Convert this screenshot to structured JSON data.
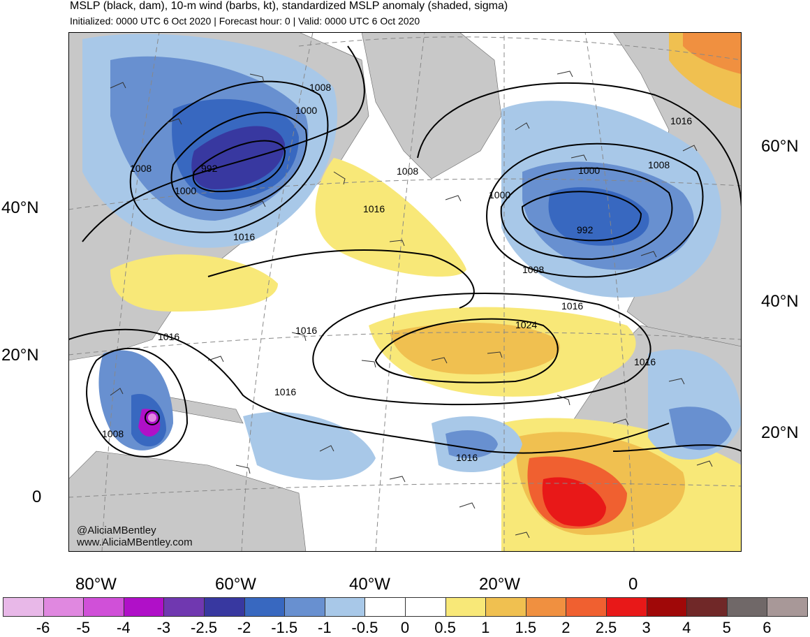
{
  "header": {
    "title": "MSLP (black, dam), 10-m wind (barbs, kt), standardized MSLP anomaly (shaded, sigma)",
    "subtitle": "Initialized: 0000 UTC 6 Oct 2020 | Forecast hour: 0 | Valid: 0000 UTC 6 Oct 2020"
  },
  "credits": {
    "handle": "@AliciaMBentley",
    "site": "www.AliciaMBentley.com"
  },
  "lat_labels_left": [
    "40°N",
    "20°N",
    "0"
  ],
  "lat_labels_right": [
    "60°N",
    "40°N",
    "20°N"
  ],
  "lon_labels": [
    "80°W",
    "60°W",
    "40°W",
    "20°W",
    "0"
  ],
  "contour_labels": [
    "1008",
    "1000",
    "992",
    "1000",
    "1008",
    "1016",
    "1016",
    "1016",
    "1016",
    "1008",
    "1016",
    "1008",
    "1000",
    "1000",
    "992",
    "1008",
    "1016",
    "1024",
    "1016",
    "1016",
    "1008",
    "1016"
  ],
  "colorbar": {
    "ticks": [
      "-6",
      "-5",
      "-4",
      "-3",
      "-2.5",
      "-2",
      "-1.5",
      "-1",
      "-0.5",
      "0",
      "0.5",
      "1",
      "1.5",
      "2",
      "2.5",
      "3",
      "4",
      "5",
      "6"
    ],
    "colors": [
      "#e8b8e8",
      "#e088e0",
      "#d050d8",
      "#b010c8",
      "#7038b0",
      "#3838a0",
      "#3868c0",
      "#6890d0",
      "#a8c8e8",
      "#ffffff",
      "#ffffff",
      "#f8e878",
      "#f0c050",
      "#f09040",
      "#f06030",
      "#e81818",
      "#a00808",
      "#702828",
      "#706868",
      "#a89898"
    ]
  }
}
